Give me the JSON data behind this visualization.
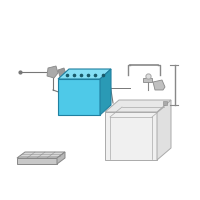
{
  "bg_color": "#ffffff",
  "battery_color": "#4ec9e8",
  "battery_dark_color": "#2a9ab5",
  "battery_top_color": "#85dff5",
  "line_color": "#888888",
  "box_line_color": "#aaaaaa",
  "dot_color": "#1a5a6a",
  "tray_color": "#cccccc",
  "connector_color": "#999999",
  "wire_color": "#777777"
}
